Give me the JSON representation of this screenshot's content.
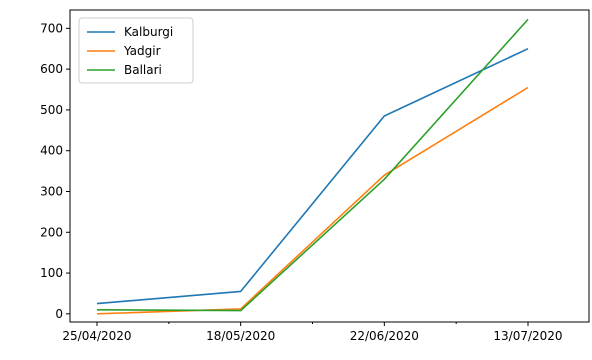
{
  "chart_data": {
    "type": "line",
    "title": "",
    "xlabel": "",
    "ylabel": "",
    "categories": [
      "25/04/2020",
      "18/05/2020",
      "22/06/2020",
      "13/07/2020"
    ],
    "ylim": [
      -20,
      745
    ],
    "yticks": [
      0,
      100,
      200,
      300,
      400,
      500,
      600,
      700
    ],
    "grid": false,
    "legend_position": "top-left",
    "series": [
      {
        "name": "Kalburgi",
        "color": "#1f77b4",
        "values": [
          25,
          55,
          485,
          650
        ]
      },
      {
        "name": "Yadgir",
        "color": "#ff7f0e",
        "values": [
          0,
          12,
          340,
          555
        ]
      },
      {
        "name": "Ballari",
        "color": "#2ca02c",
        "values": [
          10,
          8,
          330,
          722
        ]
      }
    ]
  }
}
